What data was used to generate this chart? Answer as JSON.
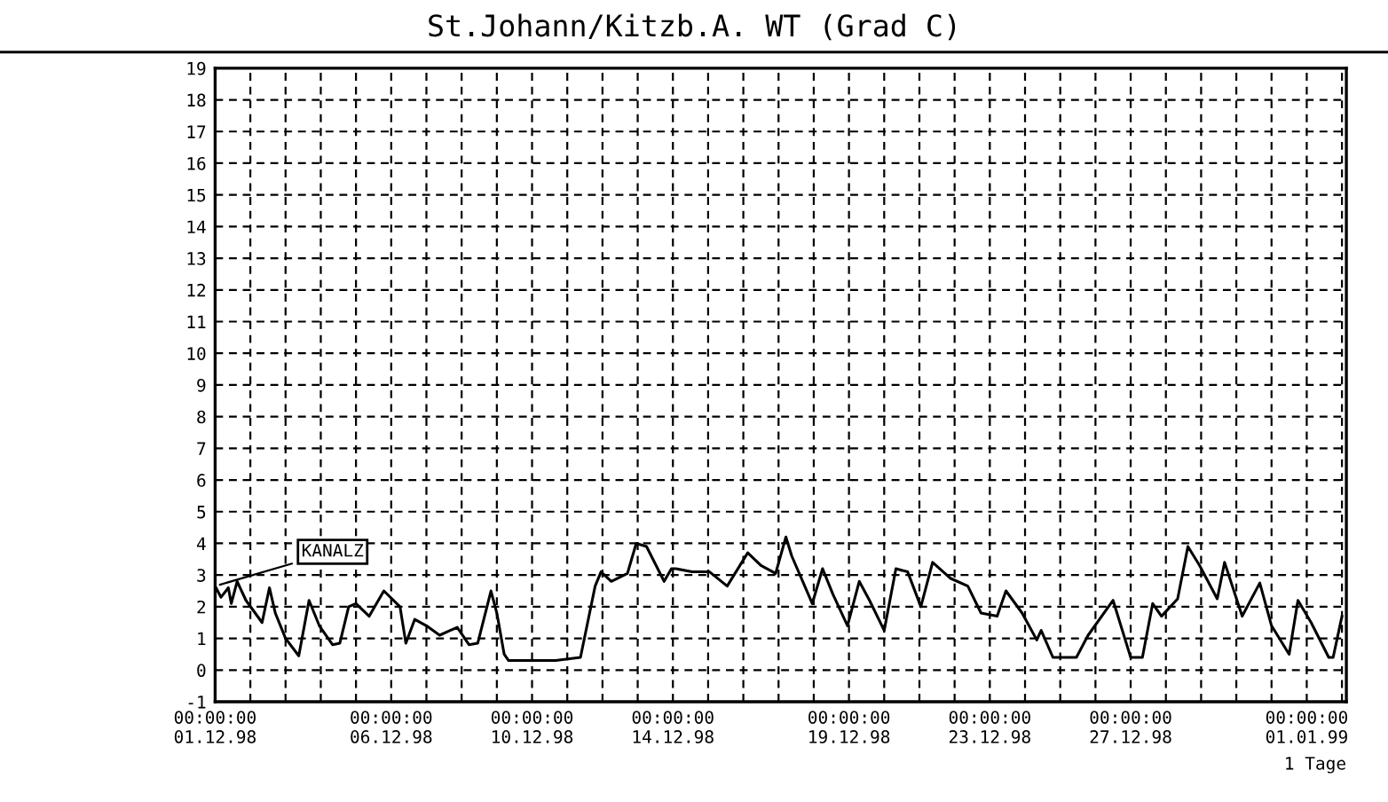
{
  "chart_data": {
    "type": "line",
    "title": "St.Johann/Kitzb.A. WT (Grad C)",
    "xlabel": "1 Tage",
    "x": [
      "1998-12-01T00:00",
      "1998-12-01T04:00",
      "1998-12-01T09:00",
      "1998-12-01T11:00",
      "1998-12-01T15:00",
      "1998-12-01T21:00",
      "1998-12-02T08:00",
      "1998-12-02T13:00",
      "1998-12-02T17:00",
      "1998-12-03T00:00",
      "1998-12-03T09:00",
      "1998-12-03T16:00",
      "1998-12-03T23:00",
      "1998-12-04T08:00",
      "1998-12-04T13:00",
      "1998-12-04T19:00",
      "1998-12-05T00:00",
      "1998-12-05T09:00",
      "1998-12-05T19:00",
      "1998-12-06T06:00",
      "1998-12-06T10:00",
      "1998-12-06T16:00",
      "1998-12-07T00:00",
      "1998-12-07T09:00",
      "1998-12-07T21:00",
      "1998-12-08T05:00",
      "1998-12-08T11:00",
      "1998-12-08T20:00",
      "1998-12-09T00:00",
      "1998-12-09T05:00",
      "1998-12-09T08:00",
      "1998-12-10T16:00",
      "1998-12-11T09:00",
      "1998-12-11T19:00",
      "1998-12-11T23:00",
      "1998-12-12T06:00",
      "1998-12-12T17:00",
      "1998-12-12T23:00",
      "1998-12-13T06:00",
      "1998-12-13T18:00",
      "1998-12-13T23:00",
      "1998-12-14T02:00",
      "1998-12-14T13:00",
      "1998-12-15T01:00",
      "1998-12-15T13:00",
      "1998-12-16T03:00",
      "1998-12-16T12:00",
      "1998-12-16T22:00",
      "1998-12-17T05:00",
      "1998-12-17T09:00",
      "1998-12-17T23:00",
      "1998-12-18T06:00",
      "1998-12-18T13:00",
      "1998-12-18T23:00",
      "1998-12-19T07:00",
      "1998-12-19T14:00",
      "1998-12-20T00:00",
      "1998-12-20T08:00",
      "1998-12-20T16:00",
      "1998-12-21T01:00",
      "1998-12-21T09:00",
      "1998-12-21T21:00",
      "1998-12-22T09:00",
      "1998-12-22T18:00",
      "1998-12-23T05:00",
      "1998-12-23T11:00",
      "1998-12-23T22:00",
      "1998-12-24T08:00",
      "1998-12-24T11:00",
      "1998-12-24T19:00",
      "1998-12-25T11:00",
      "1998-12-25T19:00",
      "1998-12-26T12:00",
      "1998-12-27T00:00",
      "1998-12-27T08:00",
      "1998-12-27T15:00",
      "1998-12-27T21:00",
      "1998-12-28T08:00",
      "1998-12-28T15:00",
      "1998-12-28T23:00",
      "1998-12-29T11:00",
      "1998-12-29T16:00",
      "1998-12-30T04:00",
      "1998-12-30T16:00",
      "1998-12-31T00:00",
      "1998-12-31T12:00",
      "1998-12-31T18:00",
      "1999-01-01T03:00",
      "1999-01-01T15:00",
      "1999-01-01T18:00",
      "1999-01-02T00:00"
    ],
    "series": [
      {
        "color": "#000000",
        "values": [
          2.65,
          2.3,
          2.6,
          2.1,
          2.8,
          2.2,
          1.5,
          2.6,
          1.8,
          1.0,
          0.45,
          2.2,
          1.4,
          0.8,
          0.85,
          2.0,
          2.1,
          1.7,
          2.5,
          2.0,
          0.85,
          1.6,
          1.4,
          1.1,
          1.35,
          0.8,
          0.85,
          2.5,
          1.8,
          0.5,
          0.3,
          0.3,
          0.4,
          2.65,
          3.1,
          2.8,
          3.05,
          4.0,
          3.9,
          2.8,
          3.2,
          3.2,
          3.1,
          3.1,
          2.65,
          3.7,
          3.3,
          3.05,
          4.2,
          3.6,
          2.1,
          3.2,
          2.4,
          1.4,
          2.8,
          2.2,
          1.25,
          3.2,
          3.1,
          2.0,
          3.4,
          2.9,
          2.65,
          1.8,
          1.7,
          2.5,
          1.8,
          0.95,
          1.25,
          0.4,
          0.4,
          1.1,
          2.2,
          0.4,
          0.4,
          2.1,
          1.7,
          2.25,
          3.9,
          3.3,
          2.25,
          3.4,
          1.7,
          2.75,
          1.4,
          0.5,
          2.2,
          1.5,
          0.4,
          0.4,
          1.7
        ]
      }
    ],
    "xlim": [
      "1998-12-01T00:00",
      "1999-01-02T03:00"
    ],
    "xticks": [
      {
        "value": "1998-12-01",
        "label": "00:00:00\n01.12.98"
      },
      {
        "value": "1998-12-02",
        "label": null
      },
      {
        "value": "1998-12-03",
        "label": null
      },
      {
        "value": "1998-12-04",
        "label": null
      },
      {
        "value": "1998-12-05",
        "label": null
      },
      {
        "value": "1998-12-06",
        "label": "00:00:00\n06.12.98"
      },
      {
        "value": "1998-12-07",
        "label": null
      },
      {
        "value": "1998-12-08",
        "label": null
      },
      {
        "value": "1998-12-09",
        "label": null
      },
      {
        "value": "1998-12-10",
        "label": "00:00:00\n10.12.98"
      },
      {
        "value": "1998-12-11",
        "label": null
      },
      {
        "value": "1998-12-12",
        "label": null
      },
      {
        "value": "1998-12-13",
        "label": null
      },
      {
        "value": "1998-12-14",
        "label": "00:00:00\n14.12.98"
      },
      {
        "value": "1998-12-15",
        "label": null
      },
      {
        "value": "1998-12-16",
        "label": null
      },
      {
        "value": "1998-12-17",
        "label": null
      },
      {
        "value": "1998-12-18",
        "label": null
      },
      {
        "value": "1998-12-19",
        "label": "00:00:00\n19.12.98"
      },
      {
        "value": "1998-12-20",
        "label": null
      },
      {
        "value": "1998-12-21",
        "label": null
      },
      {
        "value": "1998-12-22",
        "label": null
      },
      {
        "value": "1998-12-23",
        "label": "00:00:00\n23.12.98"
      },
      {
        "value": "1998-12-24",
        "label": null
      },
      {
        "value": "1998-12-25",
        "label": null
      },
      {
        "value": "1998-12-26",
        "label": null
      },
      {
        "value": "1998-12-27",
        "label": "00:00:00\n27.12.98"
      },
      {
        "value": "1998-12-28",
        "label": null
      },
      {
        "value": "1998-12-29",
        "label": null
      },
      {
        "value": "1998-12-30",
        "label": null
      },
      {
        "value": "1998-12-31",
        "label": null
      },
      {
        "value": "1999-01-01",
        "label": "00:00:00\n01.01.99"
      },
      {
        "value": "1999-01-02",
        "label": null
      }
    ],
    "ylim": [
      -1,
      19
    ],
    "yticks": [
      -1,
      0,
      1,
      2,
      3,
      4,
      5,
      6,
      7,
      8,
      9,
      10,
      11,
      12,
      13,
      14,
      15,
      16,
      17,
      18,
      19
    ],
    "grid": true,
    "line_style": "solid",
    "annotations": [
      {
        "text": "KANALZ",
        "x": "1998-12-01T00:00",
        "y": 2.65
      }
    ]
  }
}
